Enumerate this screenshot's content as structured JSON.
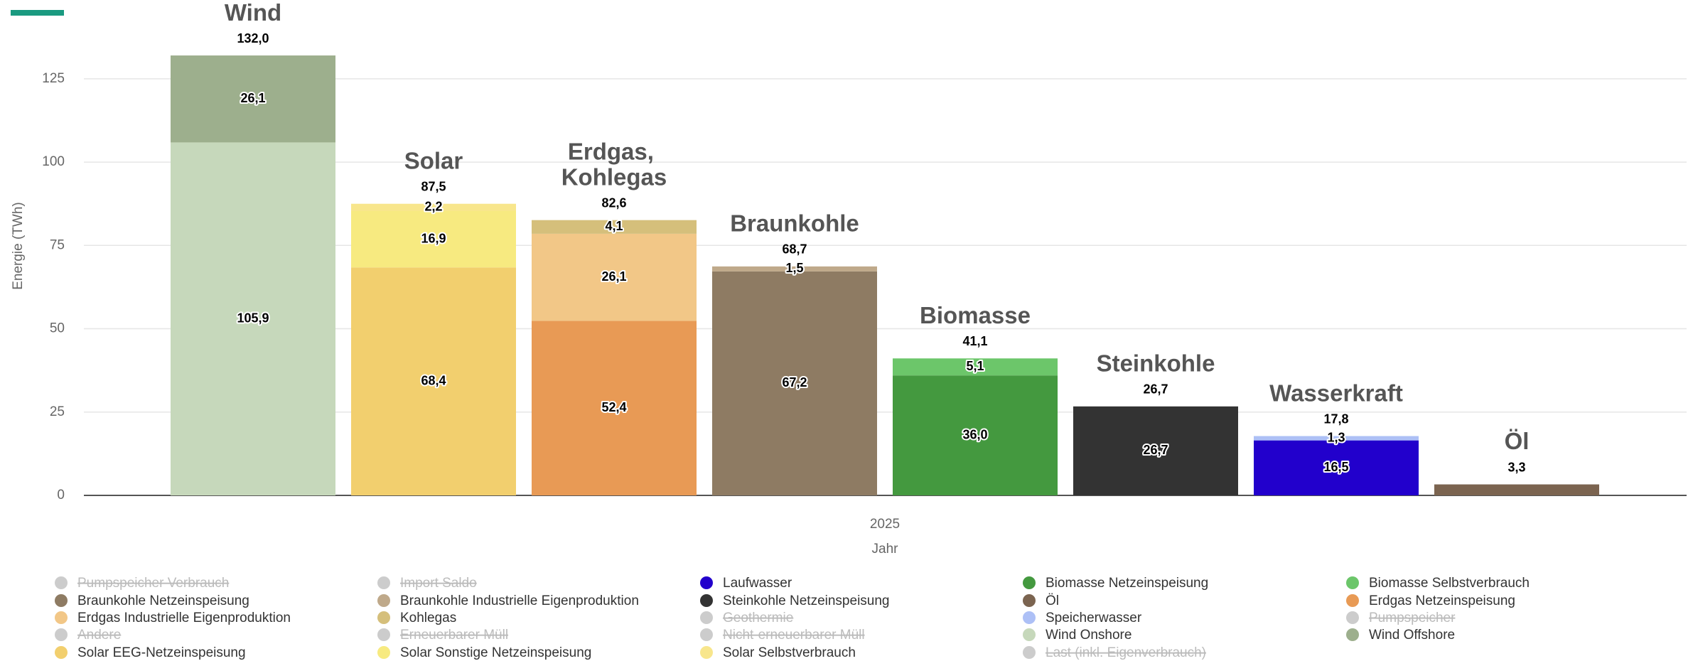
{
  "chart_data": {
    "type": "stacked_bar",
    "categories": [
      "Wind",
      "Solar",
      "Erdgas, Kohlegas",
      "Braunkohle",
      "Biomasse",
      "Steinkohle",
      "Wasserkraft",
      "Öl"
    ],
    "x_category": "2025",
    "x_label": "Jahr",
    "y_label": "Energie (TWh)",
    "ylim": [
      0,
      148
    ],
    "yticks": [
      0,
      25,
      50,
      75,
      100,
      125
    ],
    "grid": true,
    "totals": {
      "values": [
        132.0,
        87.5,
        82.6,
        68.7,
        41.1,
        26.7,
        17.8,
        3.3
      ],
      "value_labels": [
        "132,0",
        "87,5",
        "82,6",
        "68,7",
        "41,1",
        "26,7",
        "17,8",
        "3,3"
      ]
    },
    "series": [
      {
        "name": "Pumpspeicher Verbrauch",
        "visible": false,
        "values": [
          null,
          null,
          null,
          null,
          null,
          null,
          null,
          null
        ]
      },
      {
        "name": "Import Saldo",
        "visible": false,
        "values": [
          null,
          null,
          null,
          null,
          null,
          null,
          null,
          null
        ]
      },
      {
        "name": "Laufwasser",
        "color": "#2200cc",
        "values": [
          null,
          null,
          null,
          null,
          null,
          null,
          16.5,
          null
        ],
        "value_labels": [
          null,
          null,
          null,
          null,
          null,
          null,
          "16,5",
          null
        ]
      },
      {
        "name": "Biomasse Netzeinspeisung",
        "color": "#44993f",
        "values": [
          null,
          null,
          null,
          null,
          36.0,
          null,
          null,
          null
        ],
        "value_labels": [
          null,
          null,
          null,
          null,
          "36,0",
          null,
          null,
          null
        ]
      },
      {
        "name": "Biomasse Selbstverbrauch",
        "color": "#6cc66a",
        "values": [
          null,
          null,
          null,
          null,
          5.1,
          null,
          null,
          null
        ],
        "value_labels": [
          null,
          null,
          null,
          null,
          "5,1",
          null,
          null,
          null
        ]
      },
      {
        "name": "Braunkohle Netzeinspeisung",
        "color": "#8e7b63",
        "values": [
          null,
          null,
          null,
          67.2,
          null,
          null,
          null,
          null
        ],
        "value_labels": [
          null,
          null,
          null,
          "67,2",
          null,
          null,
          null,
          null
        ]
      },
      {
        "name": "Braunkohle Industrielle Eigenproduktion",
        "color": "#bfa98a",
        "values": [
          null,
          null,
          null,
          1.5,
          null,
          null,
          null,
          null
        ],
        "value_labels": [
          null,
          null,
          null,
          "1,5",
          null,
          null,
          null,
          null
        ]
      },
      {
        "name": "Steinkohle Netzeinspeisung",
        "color": "#333333",
        "values": [
          null,
          null,
          null,
          null,
          null,
          26.7,
          null,
          null
        ],
        "value_labels": [
          null,
          null,
          null,
          null,
          null,
          "26,7",
          null,
          null
        ]
      },
      {
        "name": "Öl",
        "color": "#7b6450",
        "values": [
          null,
          null,
          null,
          null,
          null,
          null,
          null,
          3.3
        ]
      },
      {
        "name": "Erdgas Netzeinspeisung",
        "color": "#e89a55",
        "values": [
          null,
          null,
          52.4,
          null,
          null,
          null,
          null,
          null
        ],
        "value_labels": [
          null,
          null,
          "52,4",
          null,
          null,
          null,
          null,
          null
        ]
      },
      {
        "name": "Erdgas Industrielle Eigenproduktion",
        "color": "#f2c787",
        "values": [
          null,
          null,
          26.1,
          null,
          null,
          null,
          null,
          null
        ],
        "value_labels": [
          null,
          null,
          "26,1",
          null,
          null,
          null,
          null,
          null
        ]
      },
      {
        "name": "Kohlegas",
        "color": "#d5bf7b",
        "values": [
          null,
          null,
          4.1,
          null,
          null,
          null,
          null,
          null
        ],
        "value_labels": [
          null,
          null,
          "4,1",
          null,
          null,
          null,
          null,
          null
        ]
      },
      {
        "name": "Geothermie",
        "visible": false,
        "values": [
          null,
          null,
          null,
          null,
          null,
          null,
          null,
          null
        ]
      },
      {
        "name": "Speicherwasser",
        "color": "#adc0f6",
        "values": [
          null,
          null,
          null,
          null,
          null,
          null,
          1.3,
          null
        ],
        "value_labels": [
          null,
          null,
          null,
          null,
          null,
          null,
          "1,3",
          null
        ]
      },
      {
        "name": "Pumpspeicher",
        "visible": false,
        "values": [
          null,
          null,
          null,
          null,
          null,
          null,
          null,
          null
        ]
      },
      {
        "name": "Andere",
        "visible": false,
        "values": [
          null,
          null,
          null,
          null,
          null,
          null,
          null,
          null
        ]
      },
      {
        "name": "Erneuerbarer Müll",
        "visible": false,
        "values": [
          null,
          null,
          null,
          null,
          null,
          null,
          null,
          null
        ]
      },
      {
        "name": "Nicht-erneuerbarer Müll",
        "visible": false,
        "values": [
          null,
          null,
          null,
          null,
          null,
          null,
          null,
          null
        ]
      },
      {
        "name": "Wind Onshore",
        "color": "#c6d8bb",
        "values": [
          105.9,
          null,
          null,
          null,
          null,
          null,
          null,
          null
        ],
        "value_labels": [
          "105,9",
          null,
          null,
          null,
          null,
          null,
          null,
          null
        ]
      },
      {
        "name": "Wind Offshore",
        "color": "#9daf8d",
        "values": [
          26.1,
          null,
          null,
          null,
          null,
          null,
          null,
          null
        ],
        "value_labels": [
          "26,1",
          null,
          null,
          null,
          null,
          null,
          null,
          null
        ]
      },
      {
        "name": "Solar EEG-Netzeinspeisung",
        "color": "#f2cf6e",
        "values": [
          null,
          68.4,
          null,
          null,
          null,
          null,
          null,
          null
        ],
        "value_labels": [
          null,
          "68,4",
          null,
          null,
          null,
          null,
          null,
          null
        ]
      },
      {
        "name": "Solar Sonstige Netzeinspeisung",
        "color": "#f7ea80",
        "values": [
          null,
          16.9,
          null,
          null,
          null,
          null,
          null,
          null
        ],
        "value_labels": [
          null,
          "16,9",
          null,
          null,
          null,
          null,
          null,
          null
        ]
      },
      {
        "name": "Solar Selbstverbrauch",
        "color": "#f8e68c",
        "values": [
          null,
          2.2,
          null,
          null,
          null,
          null,
          null,
          null
        ],
        "value_labels": [
          null,
          "2,2",
          null,
          null,
          null,
          null,
          null,
          null
        ]
      },
      {
        "name": "Last (inkl. Eigenverbrauch)",
        "visible": false,
        "values": [
          null,
          null,
          null,
          null,
          null,
          null,
          null,
          null
        ]
      }
    ]
  }
}
